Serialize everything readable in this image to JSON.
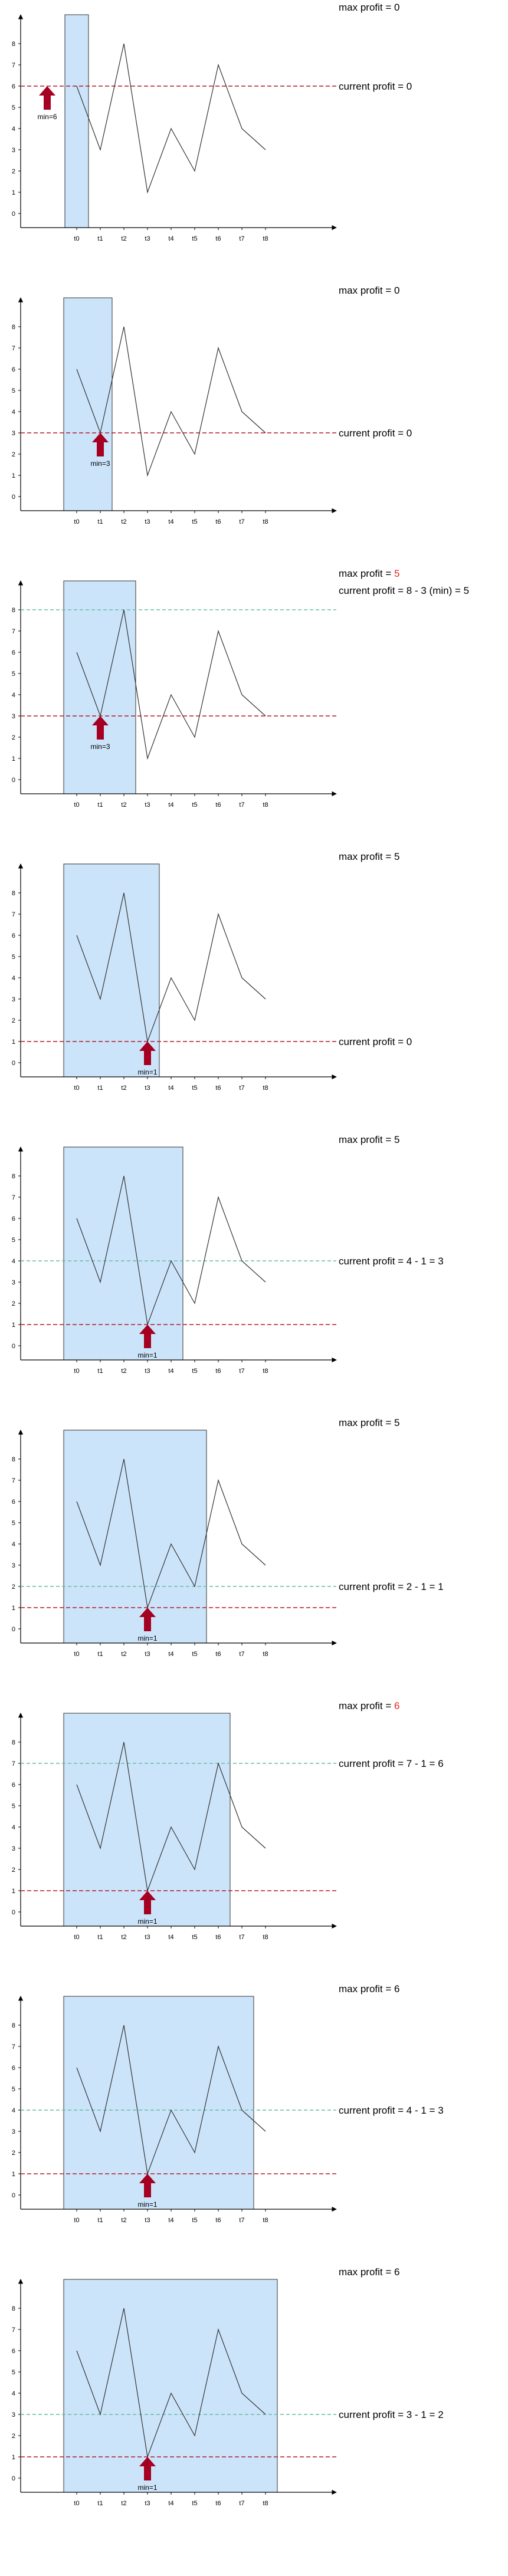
{
  "diagram": {
    "x_ticks": [
      "t0",
      "t1",
      "t2",
      "t3",
      "t4",
      "t5",
      "t6",
      "t7",
      "t8"
    ],
    "y_ticks": [
      "0",
      "1",
      "2",
      "3",
      "4",
      "5",
      "6",
      "7",
      "8"
    ],
    "prices": [
      6,
      3,
      8,
      1,
      4,
      2,
      7,
      4,
      3
    ],
    "colors": {
      "window_fill": "#cce4fa",
      "window_stroke": "#333333",
      "min_line": "#b2182b",
      "current_line": "#66bba8",
      "arrow": "#a50021",
      "highlight": "#e8261d"
    }
  },
  "panels": [
    {
      "window_end": 0,
      "min_label": "min=6",
      "min_index": 0,
      "min_value": 6,
      "max_profit_prefix": "max profit = ",
      "max_profit_value": "0",
      "max_profit_highlight": false,
      "current_profit": "current profit = 0",
      "current_y": 6,
      "current_line_shown": false
    },
    {
      "window_end": 1,
      "min_label": "min=3",
      "min_index": 1,
      "min_value": 3,
      "max_profit_prefix": "max profit = ",
      "max_profit_value": "0",
      "max_profit_highlight": false,
      "current_profit": "current profit = 0",
      "current_y": 3,
      "current_line_shown": false
    },
    {
      "window_end": 2,
      "min_label": "min=3",
      "min_index": 1,
      "min_value": 3,
      "max_profit_prefix": "max profit = ",
      "max_profit_value": "5",
      "max_profit_highlight": true,
      "current_profit": "current profit = 8 - 3 (min) = 5",
      "current_y": 8,
      "current_line_shown": true
    },
    {
      "window_end": 3,
      "min_label": "min=1",
      "min_index": 3,
      "min_value": 1,
      "max_profit_prefix": "max profit = ",
      "max_profit_value": "5",
      "max_profit_highlight": false,
      "current_profit": "current profit = 0",
      "current_y": 1,
      "current_line_shown": false
    },
    {
      "window_end": 4,
      "min_label": "min=1",
      "min_index": 3,
      "min_value": 1,
      "max_profit_prefix": "max profit = ",
      "max_profit_value": "5",
      "max_profit_highlight": false,
      "current_profit": "current profit = 4 - 1 = 3",
      "current_y": 4,
      "current_line_shown": true
    },
    {
      "window_end": 5,
      "min_label": "min=1",
      "min_index": 3,
      "min_value": 1,
      "max_profit_prefix": "max profit = ",
      "max_profit_value": "5",
      "max_profit_highlight": false,
      "current_profit": "current profit = 2 - 1 = 1",
      "current_y": 2,
      "current_line_shown": true
    },
    {
      "window_end": 6,
      "min_label": "min=1",
      "min_index": 3,
      "min_value": 1,
      "max_profit_prefix": "max profit = ",
      "max_profit_value": "6",
      "max_profit_highlight": true,
      "current_profit": "current profit = 7 - 1 = 6",
      "current_y": 7,
      "current_line_shown": true
    },
    {
      "window_end": 7,
      "min_label": "min=1",
      "min_index": 3,
      "min_value": 1,
      "max_profit_prefix": "max profit = ",
      "max_profit_value": "6",
      "max_profit_highlight": false,
      "current_profit": "current profit = 4 - 1 = 3",
      "current_y": 4,
      "current_line_shown": true
    },
    {
      "window_end": 8,
      "min_label": "min=1",
      "min_index": 3,
      "min_value": 1,
      "max_profit_prefix": "max profit = ",
      "max_profit_value": "6",
      "max_profit_highlight": false,
      "current_profit": "current profit = 3 - 1 = 2",
      "current_y": 3,
      "current_line_shown": true
    }
  ]
}
